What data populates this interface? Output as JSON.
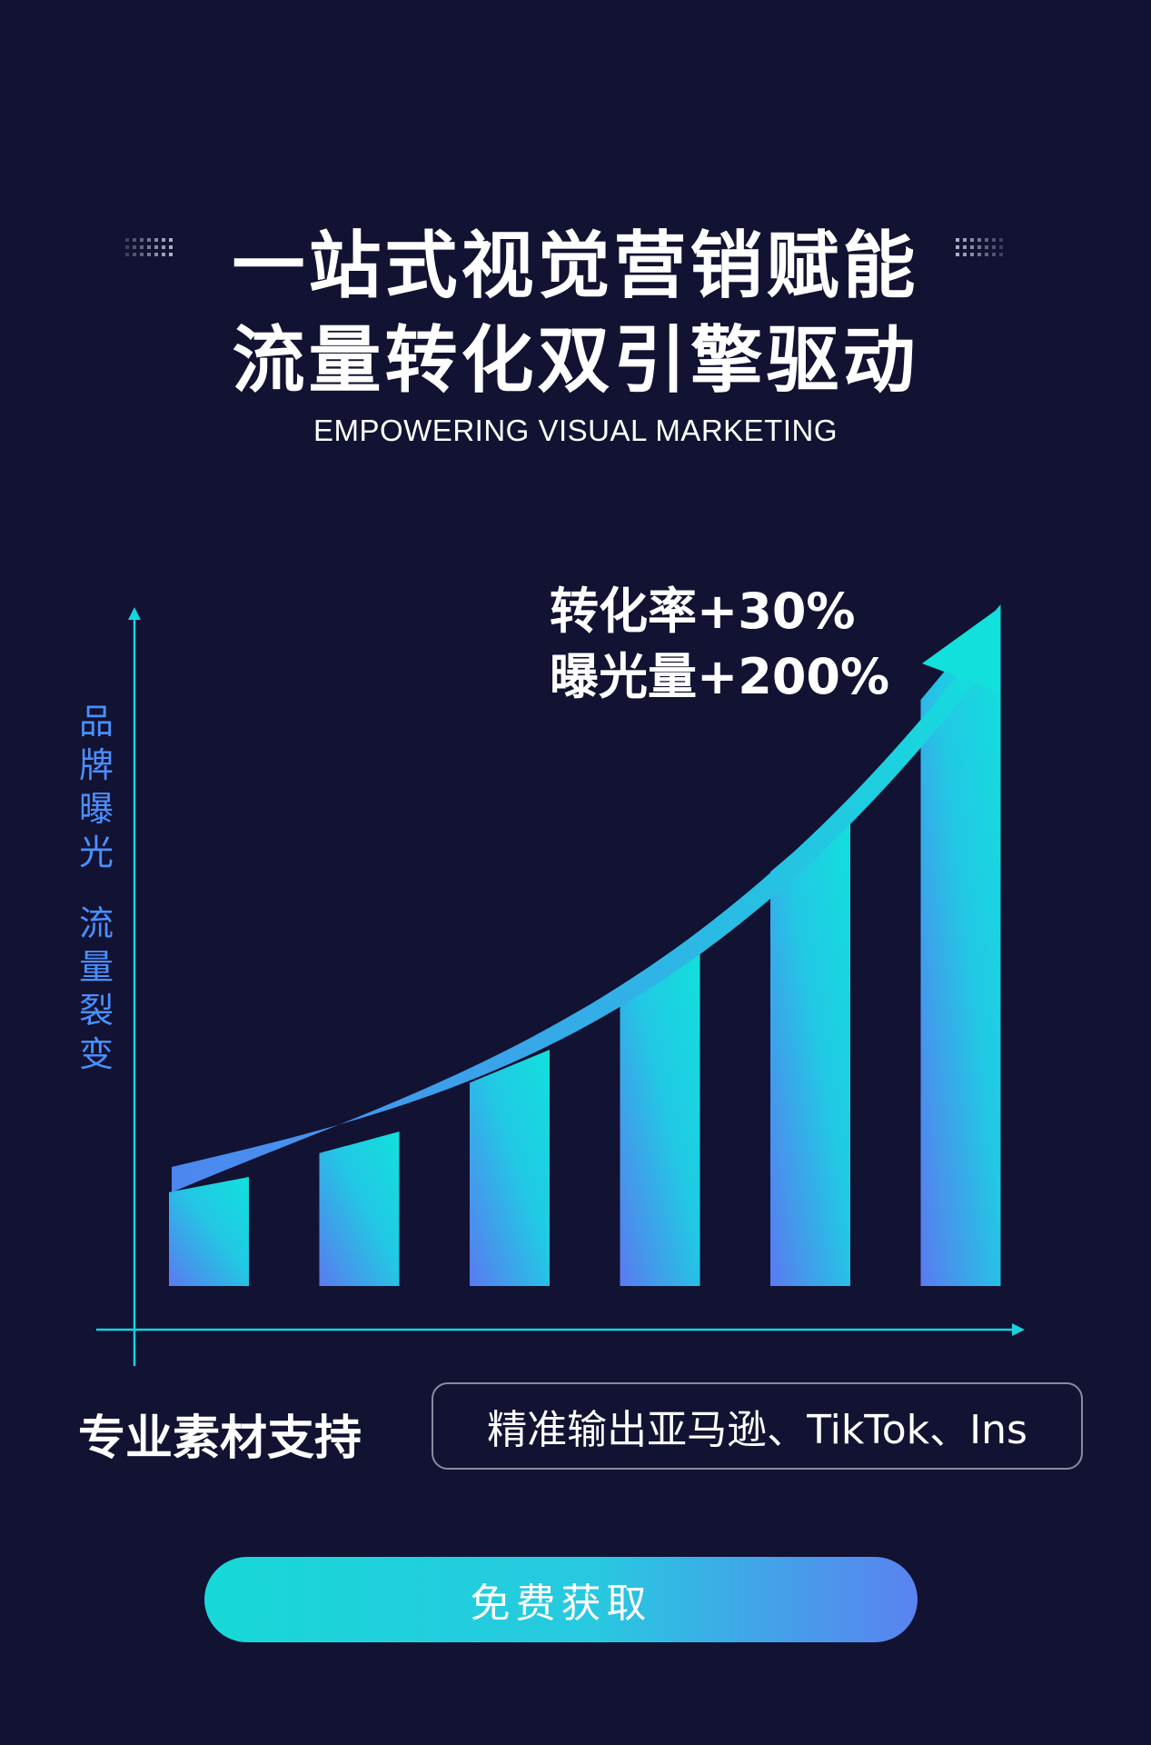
{
  "header": {
    "title_line1": "一站式视觉营销赋能",
    "title_line2": "流量转化双引擎驱动",
    "subtitle": "EMPOWERING VISUAL MARKETING"
  },
  "stats": {
    "conversion": "转化率+30%",
    "exposure": "曝光量+200%"
  },
  "y_axis_labels": {
    "group1": [
      "品",
      "牌",
      "曝",
      "光"
    ],
    "group2": [
      "流",
      "量",
      "裂",
      "变"
    ]
  },
  "chart_data": {
    "type": "bar",
    "categories": [
      "",
      "",
      "",
      "",
      "",
      ""
    ],
    "values": [
      12,
      17,
      26,
      37,
      53,
      75
    ],
    "ylim": [
      0,
      100
    ],
    "grid": false,
    "colors": {
      "low": "#5a7af0",
      "high": "#12e0dc",
      "axis": "#18d2e0"
    }
  },
  "features": {
    "support_title": "专业素材支持",
    "platforms_text": "精准输出亚马逊、TikTok、Ins"
  },
  "cta": {
    "label": "免费获取"
  },
  "colors": {
    "background": "#121232",
    "accent_cyan": "#18d8d8",
    "accent_blue": "#4a90ff"
  }
}
